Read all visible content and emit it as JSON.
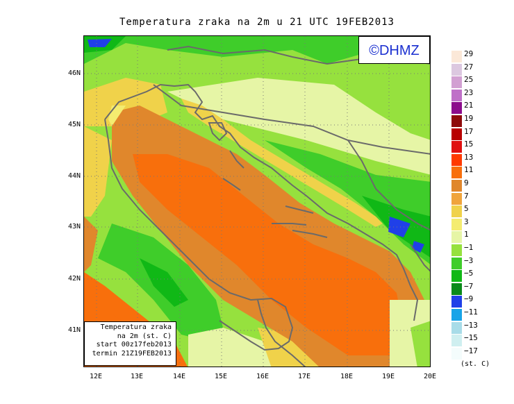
{
  "title": "Temperatura zraka na 2m u 21 UTC 19FEB2013",
  "logo": "©DHMZ",
  "info_box": {
    "line1": "Temperatura zraka",
    "line2": "na 2m (st. C)",
    "line3": "start 00z17feb2013",
    "line4": "termin 21Z19FEB2013"
  },
  "lat_labels": [
    "46N",
    "45N",
    "44N",
    "43N",
    "42N",
    "41N"
  ],
  "lon_labels": [
    "12E",
    "13E",
    "14E",
    "15E",
    "16E",
    "17E",
    "18E",
    "19E",
    "20E"
  ],
  "legend": {
    "units": "(st. C)",
    "labels": [
      "29",
      "27",
      "25",
      "23",
      "21",
      "19",
      "17",
      "15",
      "13",
      "11",
      "9",
      "7",
      "5",
      "3",
      "1",
      "−1",
      "−3",
      "−5",
      "−7",
      "−9",
      "−11",
      "−13",
      "−15",
      "−17"
    ],
    "colors": [
      "#fbe8d8",
      "#dcc8e0",
      "#d2a0d2",
      "#bf70c8",
      "#8c0c8c",
      "#8e0b0b",
      "#b80000",
      "#e01010",
      "#ff3a00",
      "#f86f0c",
      "#e0872c",
      "#f0a43c",
      "#f0d24a",
      "#f4ec70",
      "#e6f5a6",
      "#96e13e",
      "#3fcd2a",
      "#10b816",
      "#0a8a1a",
      "#2040e8",
      "#18a4e8",
      "#a8dce8",
      "#cfeff0",
      "#f4fcfc"
    ]
  },
  "colors": {
    "land_cold": "#3fcd2a",
    "land_cool": "#96e13e",
    "sea_warm": "#f86f0c",
    "sea_mild": "#e0872c",
    "coast_mild": "#f0d24a",
    "coastline": "#6a6a6a",
    "logo_text": "#1a2fd0"
  }
}
